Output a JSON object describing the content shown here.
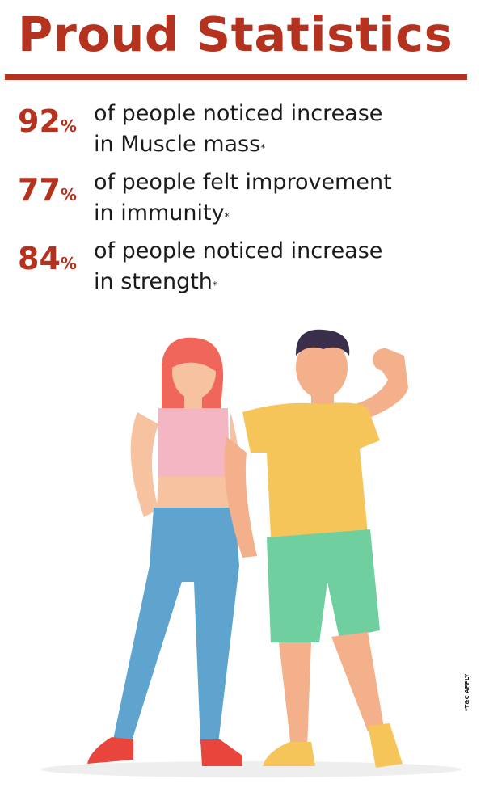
{
  "title": "Proud Statistics",
  "accent_color": "#b5321e",
  "stats": [
    {
      "value": "92",
      "unit": "%",
      "line1": "of people noticed increase",
      "line2": "in Muscle mass",
      "mark": "*"
    },
    {
      "value": "77",
      "unit": "%",
      "line1": "of people felt improvement",
      "line2": "in immunity",
      "mark": "*"
    },
    {
      "value": "84",
      "unit": "%",
      "line1": "of people noticed increase",
      "line2": "in strength",
      "mark": "*"
    }
  ],
  "disclaimer": "*T&C APPLY",
  "illustration": "fit woman and muscular man posing"
}
